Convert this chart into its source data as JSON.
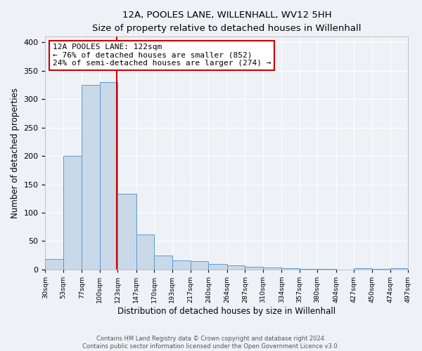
{
  "title": "12A, POOLES LANE, WILLENHALL, WV12 5HH",
  "subtitle": "Size of property relative to detached houses in Willenhall",
  "xlabel": "Distribution of detached houses by size in Willenhall",
  "ylabel": "Number of detached properties",
  "bin_edges": [
    30,
    53,
    77,
    100,
    123,
    147,
    170,
    193,
    217,
    240,
    264,
    287,
    310,
    334,
    357,
    380,
    404,
    427,
    450,
    474,
    497
  ],
  "bar_heights": [
    18,
    200,
    325,
    330,
    133,
    62,
    25,
    16,
    15,
    10,
    7,
    5,
    3,
    2,
    1,
    1,
    0,
    2,
    1,
    2
  ],
  "bar_color": "#c9d9e8",
  "bar_edge_color": "#5b9bd5",
  "property_size": 122,
  "vline_color": "#cc0000",
  "annotation_line1": "12A POOLES LANE: 122sqm",
  "annotation_line2": "← 76% of detached houses are smaller (852)",
  "annotation_line3": "24% of semi-detached houses are larger (274) →",
  "annotation_box_color": "#ffffff",
  "annotation_box_edge_color": "#cc0000",
  "ylim": [
    0,
    410
  ],
  "yticks": [
    0,
    50,
    100,
    150,
    200,
    250,
    300,
    350,
    400
  ],
  "footer_line1": "Contains HM Land Registry data © Crown copyright and database right 2024.",
  "footer_line2": "Contains public sector information licensed under the Open Government Licence v3.0.",
  "background_color": "#eef2f7",
  "plot_background_color": "#eef2f7",
  "grid_color": "#ffffff",
  "tick_labels": [
    "30sqm",
    "53sqm",
    "77sqm",
    "100sqm",
    "123sqm",
    "147sqm",
    "170sqm",
    "193sqm",
    "217sqm",
    "240sqm",
    "264sqm",
    "287sqm",
    "310sqm",
    "334sqm",
    "357sqm",
    "380sqm",
    "404sqm",
    "427sqm",
    "450sqm",
    "474sqm",
    "497sqm"
  ]
}
